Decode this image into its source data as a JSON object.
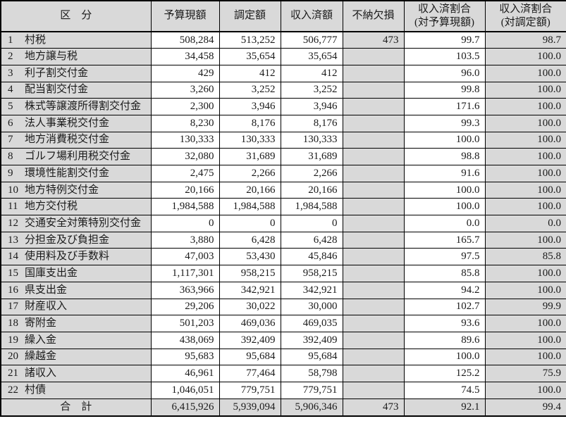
{
  "colors": {
    "shaded_cell": "#d9d9d9",
    "border": "#000000",
    "text": "#1a1a1a",
    "background": "#ffffff"
  },
  "table": {
    "headers": {
      "category": "区　分",
      "budget": "予算現額",
      "assessed": "調定額",
      "received": "収入済額",
      "loss": "不納欠損",
      "ratio_budget": "収入済割合\n(対予算現額)",
      "ratio_assessed": "収入済割合\n(対調定額)"
    },
    "rows": [
      {
        "no": "1",
        "name": "村税",
        "budget": "508,284",
        "assessed": "513,252",
        "received": "506,777",
        "loss": "473",
        "ratio_budget": "99.7",
        "ratio_assessed": "98.7"
      },
      {
        "no": "2",
        "name": "地方譲与税",
        "budget": "34,458",
        "assessed": "35,654",
        "received": "35,654",
        "loss": "",
        "ratio_budget": "103.5",
        "ratio_assessed": "100.0"
      },
      {
        "no": "3",
        "name": "利子割交付金",
        "budget": "429",
        "assessed": "412",
        "received": "412",
        "loss": "",
        "ratio_budget": "96.0",
        "ratio_assessed": "100.0"
      },
      {
        "no": "4",
        "name": "配当割交付金",
        "budget": "3,260",
        "assessed": "3,252",
        "received": "3,252",
        "loss": "",
        "ratio_budget": "99.8",
        "ratio_assessed": "100.0"
      },
      {
        "no": "5",
        "name": "株式等譲渡所得割交付金",
        "budget": "2,300",
        "assessed": "3,946",
        "received": "3,946",
        "loss": "",
        "ratio_budget": "171.6",
        "ratio_assessed": "100.0"
      },
      {
        "no": "6",
        "name": "法人事業税交付金",
        "budget": "8,230",
        "assessed": "8,176",
        "received": "8,176",
        "loss": "",
        "ratio_budget": "99.3",
        "ratio_assessed": "100.0"
      },
      {
        "no": "7",
        "name": "地方消費税交付金",
        "budget": "130,333",
        "assessed": "130,333",
        "received": "130,333",
        "loss": "",
        "ratio_budget": "100.0",
        "ratio_assessed": "100.0"
      },
      {
        "no": "8",
        "name": "ゴルフ場利用税交付金",
        "budget": "32,080",
        "assessed": "31,689",
        "received": "31,689",
        "loss": "",
        "ratio_budget": "98.8",
        "ratio_assessed": "100.0"
      },
      {
        "no": "9",
        "name": "環境性能割交付金",
        "budget": "2,475",
        "assessed": "2,266",
        "received": "2,266",
        "loss": "",
        "ratio_budget": "91.6",
        "ratio_assessed": "100.0"
      },
      {
        "no": "10",
        "name": "地方特例交付金",
        "budget": "20,166",
        "assessed": "20,166",
        "received": "20,166",
        "loss": "",
        "ratio_budget": "100.0",
        "ratio_assessed": "100.0"
      },
      {
        "no": "11",
        "name": "地方交付税",
        "budget": "1,984,588",
        "assessed": "1,984,588",
        "received": "1,984,588",
        "loss": "",
        "ratio_budget": "100.0",
        "ratio_assessed": "100.0"
      },
      {
        "no": "12",
        "name": "交通安全対策特別交付金",
        "budget": "0",
        "assessed": "0",
        "received": "0",
        "loss": "",
        "ratio_budget": "0.0",
        "ratio_assessed": "0.0"
      },
      {
        "no": "13",
        "name": "分担金及び負担金",
        "budget": "3,880",
        "assessed": "6,428",
        "received": "6,428",
        "loss": "",
        "ratio_budget": "165.7",
        "ratio_assessed": "100.0"
      },
      {
        "no": "14",
        "name": "使用料及び手数料",
        "budget": "47,003",
        "assessed": "53,430",
        "received": "45,846",
        "loss": "",
        "ratio_budget": "97.5",
        "ratio_assessed": "85.8"
      },
      {
        "no": "15",
        "name": "国庫支出金",
        "budget": "1,117,301",
        "assessed": "958,215",
        "received": "958,215",
        "loss": "",
        "ratio_budget": "85.8",
        "ratio_assessed": "100.0"
      },
      {
        "no": "16",
        "name": "県支出金",
        "budget": "363,966",
        "assessed": "342,921",
        "received": "342,921",
        "loss": "",
        "ratio_budget": "94.2",
        "ratio_assessed": "100.0"
      },
      {
        "no": "17",
        "name": "財産収入",
        "budget": "29,206",
        "assessed": "30,022",
        "received": "30,000",
        "loss": "",
        "ratio_budget": "102.7",
        "ratio_assessed": "99.9"
      },
      {
        "no": "18",
        "name": "寄附金",
        "budget": "501,203",
        "assessed": "469,036",
        "received": "469,035",
        "loss": "",
        "ratio_budget": "93.6",
        "ratio_assessed": "100.0"
      },
      {
        "no": "19",
        "name": "繰入金",
        "budget": "438,069",
        "assessed": "392,409",
        "received": "392,409",
        "loss": "",
        "ratio_budget": "89.6",
        "ratio_assessed": "100.0"
      },
      {
        "no": "20",
        "name": "繰越金",
        "budget": "95,683",
        "assessed": "95,684",
        "received": "95,684",
        "loss": "",
        "ratio_budget": "100.0",
        "ratio_assessed": "100.0"
      },
      {
        "no": "21",
        "name": "諸収入",
        "budget": "46,961",
        "assessed": "77,464",
        "received": "58,798",
        "loss": "",
        "ratio_budget": "125.2",
        "ratio_assessed": "75.9"
      },
      {
        "no": "22",
        "name": "村債",
        "budget": "1,046,051",
        "assessed": "779,751",
        "received": "779,751",
        "loss": "",
        "ratio_budget": "74.5",
        "ratio_assessed": "100.0"
      }
    ],
    "total": {
      "label": "合　計",
      "budget": "6,415,926",
      "assessed": "5,939,094",
      "received": "5,906,346",
      "loss": "473",
      "ratio_budget": "92.1",
      "ratio_assessed": "99.4"
    }
  }
}
